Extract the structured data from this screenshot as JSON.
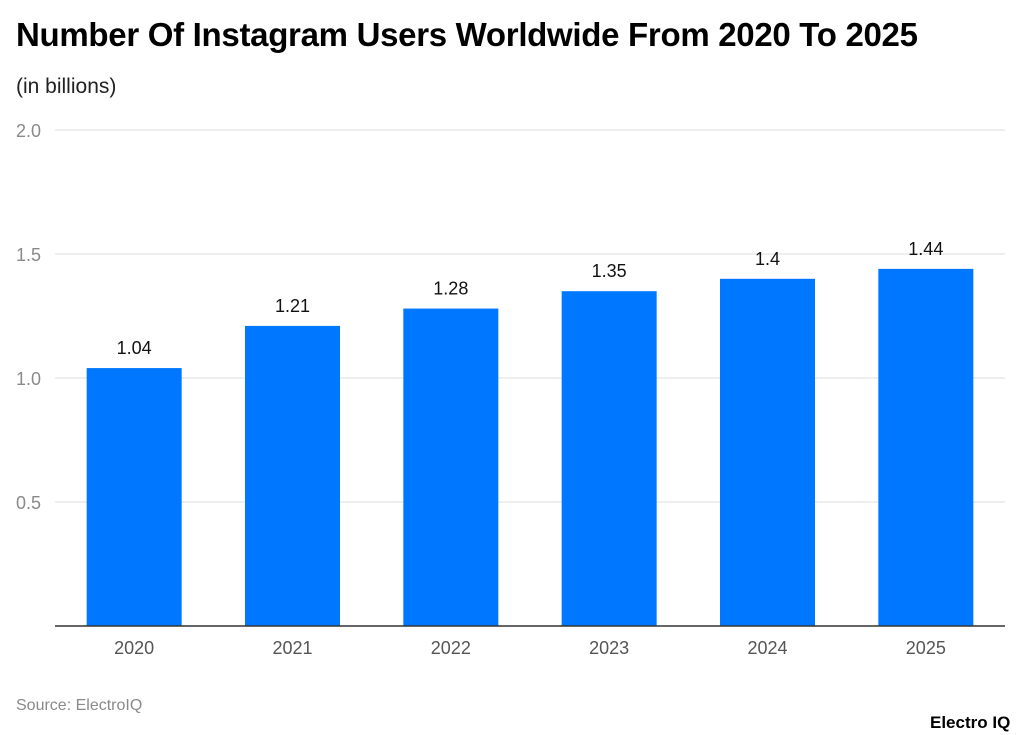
{
  "chart_data": {
    "type": "bar",
    "title": "Number Of Instagram Users Worldwide From 2020 To 2025",
    "subtitle": "(in billions)",
    "categories": [
      "2020",
      "2021",
      "2022",
      "2023",
      "2024",
      "2025"
    ],
    "values": [
      1.04,
      1.21,
      1.28,
      1.35,
      1.4,
      1.44
    ],
    "data_labels": [
      "1.04",
      "1.21",
      "1.28",
      "1.35",
      "1.4",
      "1.44"
    ],
    "y_ticks": [
      "0.5",
      "1.0",
      "1.5",
      "2.0"
    ],
    "ylim": [
      0,
      2.0
    ],
    "grid": true,
    "bar_color": "#0077ff",
    "xlabel": "",
    "ylabel": ""
  },
  "footer": {
    "source": "Source: ElectroIQ",
    "logo": "Electro IQ"
  }
}
